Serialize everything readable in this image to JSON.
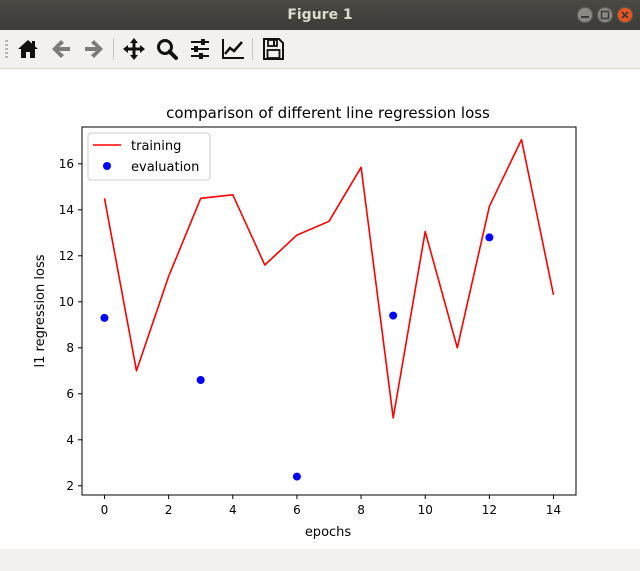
{
  "window": {
    "title": "Figure 1"
  },
  "toolbar": {
    "buttons": [
      {
        "icon": "home-icon"
      },
      {
        "icon": "back-arrow-icon"
      },
      {
        "icon": "forward-arrow-icon"
      },
      {
        "icon": "pan-icon"
      },
      {
        "icon": "zoom-icon"
      },
      {
        "icon": "subplots-config-icon"
      },
      {
        "icon": "edit-axis-icon"
      },
      {
        "icon": "save-icon"
      }
    ]
  },
  "chart_data": {
    "type": "line",
    "title": "comparison of different line regression loss",
    "xlabel": "epochs",
    "ylabel": "l1 regression loss",
    "xlim": [
      -0.7,
      14.7
    ],
    "ylim": [
      1.6,
      17.6
    ],
    "xticks": [
      0,
      2,
      4,
      6,
      8,
      10,
      12,
      14
    ],
    "yticks": [
      2,
      4,
      6,
      8,
      10,
      12,
      14,
      16
    ],
    "grid": false,
    "legend": "upper-left",
    "series": [
      {
        "name": "training",
        "style": "line",
        "color": "#ff0000",
        "x": [
          0,
          1,
          2,
          3,
          4,
          5,
          6,
          7,
          8,
          9,
          10,
          11,
          12,
          13,
          14
        ],
        "y": [
          14.5,
          7.0,
          11.1,
          14.5,
          14.65,
          11.6,
          12.9,
          13.5,
          15.85,
          4.95,
          13.05,
          8.0,
          14.15,
          17.05,
          10.3
        ]
      },
      {
        "name": "evaluation",
        "style": "points",
        "color": "#0000ff",
        "x": [
          0,
          3,
          6,
          9,
          12
        ],
        "y": [
          9.3,
          6.6,
          2.4,
          9.4,
          12.8
        ]
      }
    ]
  }
}
